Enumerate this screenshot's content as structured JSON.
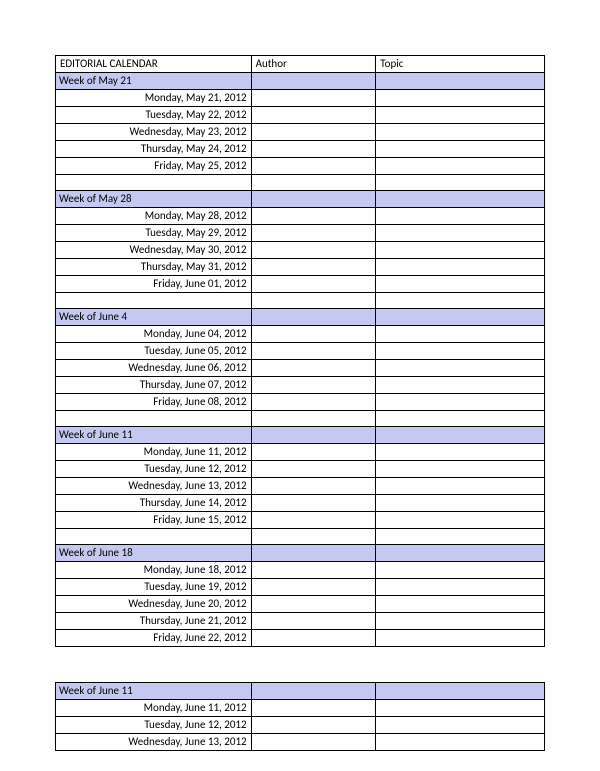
{
  "colors": {
    "week_bg": "#c5c9f1",
    "border": "#000000",
    "background": "#ffffff",
    "text": "#000000"
  },
  "header": {
    "title": "EDITORIAL CALENDAR",
    "author": "Author",
    "topic": "Topic"
  },
  "main": {
    "weeks": [
      {
        "label": "Week of May 21",
        "days": [
          "Monday, May 21, 2012",
          "Tuesday, May 22, 2012",
          "Wednesday, May 23, 2012",
          "Thursday, May 24, 2012",
          "Friday, May 25, 2012"
        ]
      },
      {
        "label": "Week of May 28",
        "days": [
          "Monday, May 28, 2012",
          "Tuesday, May 29, 2012",
          "Wednesday, May 30, 2012",
          "Thursday, May 31, 2012",
          "Friday, June 01, 2012"
        ]
      },
      {
        "label": "Week of June 4",
        "days": [
          "Monday, June 04, 2012",
          "Tuesday, June 05, 2012",
          "Wednesday, June 06, 2012",
          "Thursday, June 07, 2012",
          "Friday, June 08, 2012"
        ]
      },
      {
        "label": "Week of June 11",
        "days": [
          "Monday, June 11, 2012",
          "Tuesday, June 12, 2012",
          "Wednesday, June 13, 2012",
          "Thursday, June 14, 2012",
          "Friday, June 15, 2012"
        ]
      },
      {
        "label": "Week of June 18",
        "days": [
          "Monday, June 18, 2012",
          "Tuesday, June 19, 2012",
          "Wednesday, June 20, 2012",
          "Thursday, June 21, 2012",
          "Friday, June 22, 2012"
        ]
      }
    ]
  },
  "secondary": {
    "weeks": [
      {
        "label": "Week of June 11",
        "days": [
          "Monday, June 11, 2012",
          "Tuesday, June 12, 2012",
          "Wednesday, June 13, 2012"
        ]
      }
    ]
  }
}
